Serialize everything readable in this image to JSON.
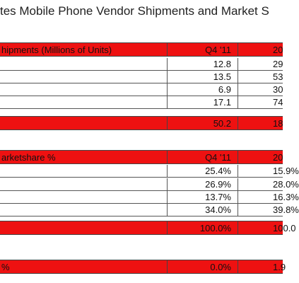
{
  "title": "tes Mobile Phone Vendor Shipments and Market S",
  "tables": [
    {
      "header": [
        "hipments (Millions of Units)",
        "Q4 '11",
        "20"
      ],
      "rows": [
        [
          "12.8",
          "29"
        ],
        [
          "13.5",
          "53"
        ],
        [
          "6.9",
          "30"
        ],
        [
          "17.1",
          "74"
        ]
      ],
      "total": [
        "50.2",
        "18"
      ]
    },
    {
      "header": [
        "arketshare %",
        "Q4 '11",
        "20"
      ],
      "rows": [
        [
          "25.4%",
          "15.9%"
        ],
        [
          "26.9%",
          "28.0%"
        ],
        [
          "13.7%",
          "16.3%"
        ],
        [
          "34.0%",
          "39.8%"
        ]
      ],
      "total": [
        "100.0%",
        "100.0"
      ]
    }
  ],
  "footer": [
    "%",
    "0.0%",
    "1.9"
  ]
}
